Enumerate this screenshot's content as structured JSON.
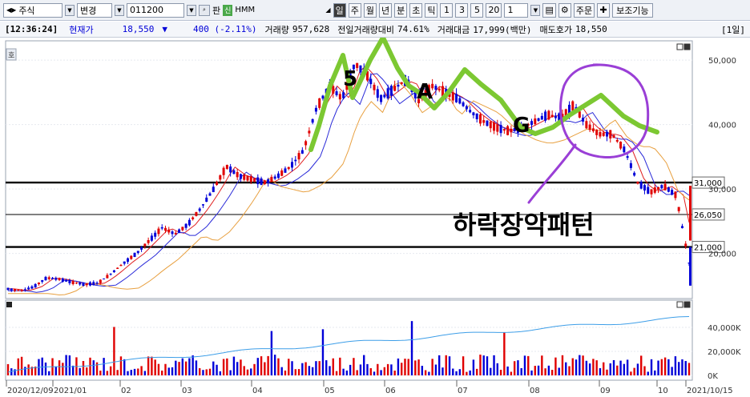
{
  "toolbar": {
    "market": "주식",
    "change_label": "변경",
    "code": "011200",
    "pan_label": "판",
    "sin_label": "신",
    "stock_name": "HMM",
    "periods": [
      "일",
      "주",
      "월",
      "년",
      "분",
      "초",
      "틱"
    ],
    "active_period": "일",
    "intervals": [
      "1",
      "3",
      "5",
      "20"
    ],
    "count_value": "1",
    "order_label": "주문",
    "assist_label": "보조기능"
  },
  "info": {
    "time": "[12:36:24]",
    "price_label": "현재가",
    "price": "18,550",
    "direction": "▼",
    "change": "400 (-2.11%)",
    "volume_label": "거래량",
    "volume": "957,628",
    "prev_label": "전일거래량대비",
    "prev_ratio": "74.61%",
    "amount_label": "거래대금",
    "amount": "17,999(백만)",
    "ask_label": "매도호가",
    "ask": "18,550",
    "period_tag": "[1일]"
  },
  "chart_data": {
    "type": "candlestick",
    "price_axis": {
      "ticks": [
        "50,000",
        "40,000",
        "30,000",
        "20,000"
      ],
      "ylim": [
        13000,
        53000
      ]
    },
    "volume_axis": {
      "ticks": [
        "40,000K",
        "20,000K",
        "0K"
      ]
    },
    "x_labels": [
      "2020/12/09",
      "2021/01",
      "02",
      "03",
      "04",
      "05",
      "06",
      "07",
      "08",
      "09",
      "10",
      "2021/10/15"
    ],
    "horizontal_lines": [
      {
        "value": 31000,
        "label": "31,000"
      },
      {
        "value": 26050,
        "label": "26,050"
      },
      {
        "value": 21000,
        "label": "21,000"
      }
    ],
    "close_path_values": [
      14500,
      14200,
      14800,
      16200,
      16000,
      15500,
      15200,
      15400,
      16800,
      18500,
      20000,
      22000,
      24000,
      23000,
      24500,
      27000,
      30000,
      33500,
      32000,
      31500,
      31000,
      32000,
      33500,
      36000,
      42500,
      46000,
      44000,
      49500,
      47500,
      44000,
      45500,
      47000,
      43500,
      46000,
      45000,
      44000,
      42000,
      40500,
      39500,
      39000,
      39500,
      40500,
      41500,
      41000,
      43000,
      40000,
      38500,
      38500,
      36000,
      31000,
      29500,
      30500,
      29000,
      18500
    ],
    "annotations": {
      "letters": [
        "5",
        "A",
        "G"
      ],
      "pattern_label": "하락장악패턴"
    },
    "panel_label": "호"
  },
  "colors": {
    "up": "#e00000",
    "down": "#0000d8",
    "ma1": "#e02020",
    "ma2": "#2a2ad8",
    "ma3": "#e8a040",
    "highlight": "#7cc832",
    "circle": "#9a3fd6",
    "volume_ma": "#3d9ee8"
  }
}
